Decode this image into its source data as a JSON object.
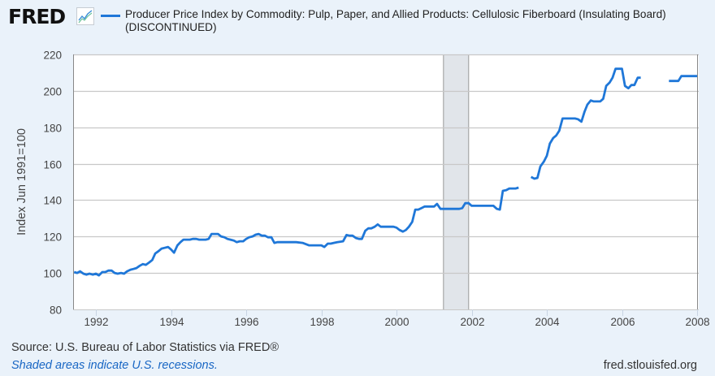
{
  "header": {
    "logo_text": "FRED",
    "logo_icon": "chart-line-icon",
    "series_title": "Producer Price Index by Commodity: Pulp, Paper, and Allied Products: Cellulosic Fiberboard (Insulating Board)",
    "series_title_line2": "(DISCONTINUED)",
    "series_color": "#1f77d8"
  },
  "footer": {
    "source": "Source: U.S. Bureau of Labor Statistics via FRED®",
    "shaded_note": "Shaded areas indicate U.S. recessions.",
    "url": "fred.stlouisfed.org"
  },
  "chart_data": {
    "type": "line",
    "title": "Producer Price Index by Commodity: Pulp, Paper, and Allied Products: Cellulosic Fiberboard (Insulating Board) (DISCONTINUED)",
    "xlabel": "",
    "ylabel": "Index Jun 1991=100",
    "xlim": [
      1991.4,
      2008.0
    ],
    "ylim": [
      80,
      220
    ],
    "yticks": [
      80,
      100,
      120,
      140,
      160,
      180,
      200,
      220
    ],
    "xticks": [
      "1992",
      "1994",
      "1996",
      "1998",
      "2000",
      "2002",
      "2004",
      "2006",
      "2008"
    ],
    "xtick_values": [
      1992,
      1994,
      1996,
      1998,
      2000,
      2002,
      2004,
      2006,
      2008
    ],
    "grid": true,
    "legend": "top-left",
    "recessions": [
      [
        2001.25,
        2001.92
      ]
    ],
    "series": [
      {
        "name": "Producer Price Index by Commodity: Pulp, Paper, and Allied Products: Cellulosic Fiberboard (Insulating Board)",
        "color": "#1f77d8",
        "segments": [
          [
            [
              1991.42,
              100.5
            ],
            [
              1991.5,
              100.0
            ],
            [
              1991.58,
              100.9
            ],
            [
              1991.67,
              99.6
            ],
            [
              1991.75,
              99.1
            ],
            [
              1991.83,
              99.6
            ],
            [
              1991.92,
              99.1
            ],
            [
              1992.0,
              99.6
            ],
            [
              1992.08,
              98.7
            ],
            [
              1992.17,
              100.5
            ],
            [
              1992.25,
              100.5
            ],
            [
              1992.33,
              101.3
            ],
            [
              1992.42,
              101.3
            ],
            [
              1992.5,
              100.0
            ],
            [
              1992.58,
              99.6
            ],
            [
              1992.67,
              100.0
            ],
            [
              1992.75,
              99.6
            ],
            [
              1992.83,
              100.9
            ],
            [
              1992.92,
              101.8
            ],
            [
              1993.0,
              102.2
            ],
            [
              1993.08,
              102.7
            ],
            [
              1993.17,
              104.0
            ],
            [
              1993.25,
              104.9
            ],
            [
              1993.33,
              104.5
            ],
            [
              1993.42,
              105.8
            ],
            [
              1993.5,
              107.1
            ],
            [
              1993.58,
              110.7
            ],
            [
              1993.67,
              112.0
            ],
            [
              1993.75,
              113.4
            ],
            [
              1993.83,
              113.8
            ],
            [
              1993.92,
              114.3
            ],
            [
              1994.0,
              112.9
            ],
            [
              1994.08,
              111.1
            ],
            [
              1994.17,
              115.2
            ],
            [
              1994.25,
              116.9
            ],
            [
              1994.33,
              118.3
            ],
            [
              1994.5,
              118.3
            ],
            [
              1994.58,
              118.7
            ],
            [
              1994.67,
              118.7
            ],
            [
              1994.75,
              118.3
            ],
            [
              1994.83,
              118.3
            ],
            [
              1994.92,
              118.3
            ],
            [
              1995.0,
              118.7
            ],
            [
              1995.08,
              121.4
            ],
            [
              1995.17,
              121.4
            ],
            [
              1995.25,
              121.4
            ],
            [
              1995.33,
              120.1
            ],
            [
              1995.42,
              119.6
            ],
            [
              1995.5,
              118.7
            ],
            [
              1995.58,
              118.3
            ],
            [
              1995.67,
              117.8
            ],
            [
              1995.75,
              116.9
            ],
            [
              1995.83,
              117.4
            ],
            [
              1995.92,
              117.4
            ],
            [
              1996.0,
              118.7
            ],
            [
              1996.08,
              119.6
            ],
            [
              1996.17,
              120.1
            ],
            [
              1996.25,
              121.0
            ],
            [
              1996.33,
              121.4
            ],
            [
              1996.42,
              120.5
            ],
            [
              1996.5,
              120.5
            ],
            [
              1996.58,
              119.6
            ],
            [
              1996.67,
              119.6
            ],
            [
              1996.75,
              116.5
            ],
            [
              1996.83,
              116.9
            ],
            [
              1996.92,
              116.9
            ],
            [
              1997.17,
              116.9
            ],
            [
              1997.33,
              116.9
            ],
            [
              1997.5,
              116.5
            ],
            [
              1997.67,
              115.2
            ],
            [
              1997.75,
              115.2
            ],
            [
              1997.92,
              115.2
            ],
            [
              1998.0,
              115.2
            ],
            [
              1998.08,
              114.3
            ],
            [
              1998.17,
              116.1
            ],
            [
              1998.25,
              116.1
            ],
            [
              1998.33,
              116.5
            ],
            [
              1998.42,
              116.9
            ],
            [
              1998.58,
              117.4
            ],
            [
              1998.67,
              120.9
            ],
            [
              1998.75,
              120.5
            ],
            [
              1998.83,
              120.5
            ],
            [
              1998.92,
              119.2
            ],
            [
              1999.0,
              118.7
            ],
            [
              1999.08,
              118.7
            ],
            [
              1999.17,
              123.2
            ],
            [
              1999.25,
              124.5
            ],
            [
              1999.33,
              124.5
            ],
            [
              1999.42,
              125.4
            ],
            [
              1999.5,
              126.7
            ],
            [
              1999.58,
              125.4
            ],
            [
              1999.67,
              125.4
            ],
            [
              1999.92,
              125.4
            ],
            [
              2000.0,
              124.9
            ],
            [
              2000.08,
              123.6
            ],
            [
              2000.17,
              122.7
            ],
            [
              2000.25,
              123.6
            ],
            [
              2000.33,
              125.4
            ],
            [
              2000.42,
              128.1
            ],
            [
              2000.5,
              134.8
            ],
            [
              2000.58,
              134.8
            ],
            [
              2000.67,
              135.7
            ],
            [
              2000.75,
              136.5
            ],
            [
              2000.92,
              136.5
            ],
            [
              2001.0,
              136.5
            ],
            [
              2001.08,
              137.9
            ],
            [
              2001.17,
              135.2
            ],
            [
              2001.33,
              135.2
            ],
            [
              2001.58,
              135.2
            ],
            [
              2001.67,
              135.2
            ],
            [
              2001.75,
              135.6
            ],
            [
              2001.83,
              138.3
            ],
            [
              2001.92,
              138.3
            ],
            [
              2002.0,
              136.9
            ],
            [
              2002.17,
              136.9
            ],
            [
              2002.42,
              136.9
            ],
            [
              2002.58,
              136.9
            ],
            [
              2002.67,
              135.2
            ],
            [
              2002.75,
              134.8
            ],
            [
              2002.83,
              145.1
            ],
            [
              2002.92,
              145.5
            ],
            [
              2003.0,
              146.4
            ],
            [
              2003.17,
              146.4
            ],
            [
              2003.25,
              146.9
            ]
          ],
          [
            [
              2003.58,
              152.7
            ],
            [
              2003.67,
              151.8
            ],
            [
              2003.75,
              152.2
            ],
            [
              2003.83,
              158.5
            ],
            [
              2003.92,
              161.1
            ],
            [
              2004.0,
              164.3
            ],
            [
              2004.08,
              171.0
            ],
            [
              2004.17,
              174.1
            ],
            [
              2004.25,
              175.5
            ],
            [
              2004.33,
              178.1
            ],
            [
              2004.42,
              184.8
            ],
            [
              2004.5,
              184.8
            ],
            [
              2004.75,
              184.8
            ],
            [
              2004.83,
              184.4
            ],
            [
              2004.92,
              183.1
            ],
            [
              2005.0,
              188.4
            ],
            [
              2005.08,
              192.4
            ],
            [
              2005.17,
              194.7
            ],
            [
              2005.25,
              194.2
            ],
            [
              2005.42,
              194.2
            ],
            [
              2005.5,
              195.6
            ],
            [
              2005.58,
              202.7
            ],
            [
              2005.67,
              204.5
            ],
            [
              2005.75,
              207.2
            ],
            [
              2005.83,
              212.1
            ],
            [
              2006.0,
              212.1
            ],
            [
              2006.08,
              202.7
            ],
            [
              2006.17,
              201.4
            ],
            [
              2006.25,
              203.2
            ],
            [
              2006.33,
              203.2
            ],
            [
              2006.42,
              207.2
            ],
            [
              2006.5,
              207.2
            ]
          ],
          [
            [
              2007.25,
              205.4
            ],
            [
              2007.5,
              205.4
            ],
            [
              2007.58,
              208.1
            ],
            [
              2007.83,
              208.1
            ],
            [
              2008.0,
              208.1
            ]
          ]
        ]
      }
    ]
  }
}
